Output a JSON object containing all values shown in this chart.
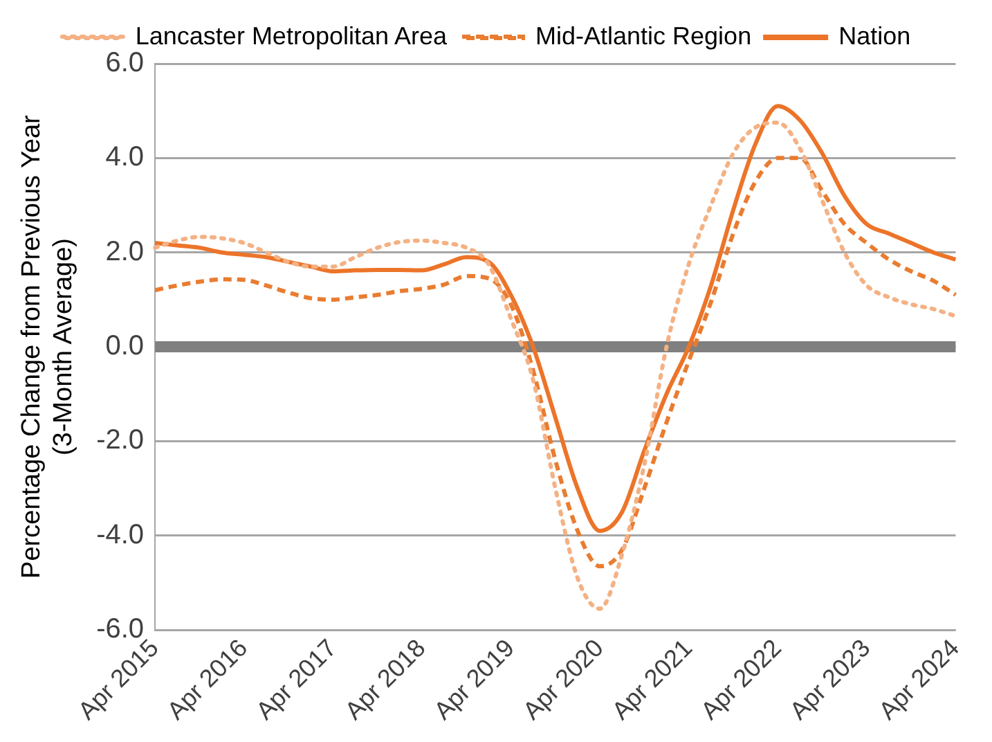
{
  "chart_data": {
    "type": "line",
    "ylabel": "Percentage Change from Previous Year\n(3-Month Average)",
    "categories": [
      "Apr 2015",
      null,
      null,
      null,
      "Apr 2016",
      null,
      null,
      null,
      "Apr 2017",
      null,
      null,
      null,
      "Apr 2018",
      null,
      null,
      null,
      "Apr 2019",
      null,
      null,
      null,
      "Apr 2020",
      null,
      null,
      null,
      "Apr 2021",
      null,
      null,
      null,
      "Apr 2022",
      null,
      null,
      null,
      "Apr 2023",
      null,
      null,
      null,
      "Apr 2024"
    ],
    "series": [
      {
        "name": "Lancaster Metropolitan Area",
        "color": "#f4b183",
        "line_style": "dotted",
        "values": [
          2.1,
          2.25,
          2.33,
          2.3,
          2.2,
          2.0,
          1.8,
          1.7,
          1.7,
          1.9,
          2.1,
          2.22,
          2.25,
          2.2,
          2.1,
          1.75,
          0.6,
          -0.7,
          -3.0,
          -4.9,
          -5.55,
          -4.4,
          -2.5,
          0.0,
          1.75,
          3.0,
          4.1,
          4.65,
          4.75,
          4.2,
          3.1,
          2.0,
          1.3,
          1.05,
          0.9,
          0.8,
          0.65
        ]
      },
      {
        "name": "Mid-Atlantic Region",
        "color": "#e97c30",
        "line_style": "dashed",
        "values": [
          1.2,
          1.3,
          1.38,
          1.43,
          1.42,
          1.3,
          1.15,
          1.03,
          1.0,
          1.05,
          1.1,
          1.18,
          1.23,
          1.32,
          1.5,
          1.45,
          0.9,
          -0.5,
          -2.4,
          -3.9,
          -4.65,
          -4.3,
          -3.0,
          -1.6,
          -0.3,
          0.95,
          2.4,
          3.5,
          4.0,
          4.0,
          3.3,
          2.6,
          2.2,
          1.85,
          1.6,
          1.4,
          1.1
        ]
      },
      {
        "name": "Nation",
        "color": "#ec7429",
        "line_style": "solid",
        "values": [
          2.2,
          2.15,
          2.1,
          2.0,
          1.95,
          1.9,
          1.8,
          1.7,
          1.6,
          1.62,
          1.63,
          1.63,
          1.62,
          1.75,
          1.9,
          1.8,
          1.1,
          0.0,
          -1.5,
          -3.0,
          -3.9,
          -3.5,
          -2.2,
          -1.0,
          0.0,
          1.3,
          2.9,
          4.3,
          5.1,
          4.8,
          4.1,
          3.2,
          2.6,
          2.4,
          2.2,
          2.0,
          1.85
        ]
      }
    ],
    "ylim": [
      -6,
      6
    ],
    "yticks": [
      {
        "value": -6,
        "label": "-6.0"
      },
      {
        "value": -4,
        "label": "-4.0"
      },
      {
        "value": -2,
        "label": "-2.0"
      },
      {
        "value": 0,
        "label": "0.0"
      },
      {
        "value": 2,
        "label": "2.0"
      },
      {
        "value": 4,
        "label": "4.0"
      },
      {
        "value": 6,
        "label": "6.0"
      }
    ],
    "ref_lines": [
      {
        "axis": "y",
        "value": 0,
        "color": "#808080"
      }
    ],
    "grid": "y",
    "legend": "top",
    "marker": "none"
  }
}
